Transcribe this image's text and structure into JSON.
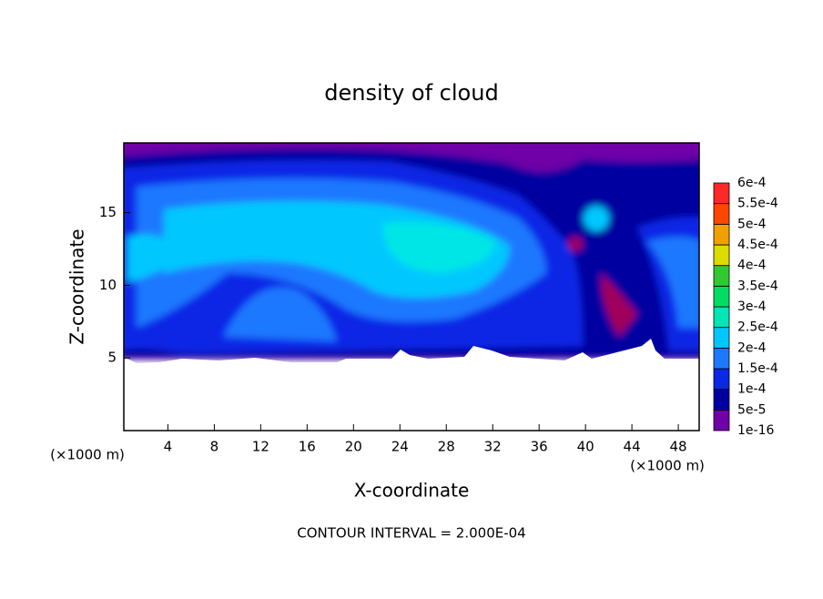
{
  "chart_data": {
    "type": "contour",
    "title": "density of cloud",
    "x_label": "X-coordinate",
    "y_label": "Z-coordinate",
    "x_unit": "(×1000 m)",
    "footer": "CONTOUR INTERVAL = 2.000E-04",
    "xlim": [
      0.2,
      49.8
    ],
    "xticks": [
      4,
      8,
      12,
      16,
      20,
      24,
      28,
      32,
      36,
      40,
      44,
      48
    ],
    "ylim": [
      0,
      19.8
    ],
    "yticks": [
      5,
      10,
      15
    ],
    "colorbar": {
      "levels": [
        {
          "value": 1e-16,
          "label": "1e-16"
        },
        {
          "value": 5e-05,
          "label": "5e-5"
        },
        {
          "value": 0.0001,
          "label": "1e-4"
        },
        {
          "value": 0.00015,
          "label": "1.5e-4"
        },
        {
          "value": 0.0002,
          "label": "2e-4"
        },
        {
          "value": 0.00025,
          "label": "2.5e-4"
        },
        {
          "value": 0.0003,
          "label": "3e-4"
        },
        {
          "value": 0.00035,
          "label": "3.5e-4"
        },
        {
          "value": 0.0004,
          "label": "4e-4"
        },
        {
          "value": 0.00045,
          "label": "4.5e-4"
        },
        {
          "value": 0.0005,
          "label": "5e-4"
        },
        {
          "value": 0.00055,
          "label": "5.5e-4"
        },
        {
          "value": 0.0006,
          "label": "6e-4"
        }
      ],
      "colors": [
        "#7000a8",
        "#0000a0",
        "#0a28e6",
        "#1e78ff",
        "#00c8ff",
        "#00e6b4",
        "#00dc64",
        "#32c832",
        "#dcdc00",
        "#f0a000",
        "#ff4600",
        "#ff2828"
      ]
    }
  }
}
